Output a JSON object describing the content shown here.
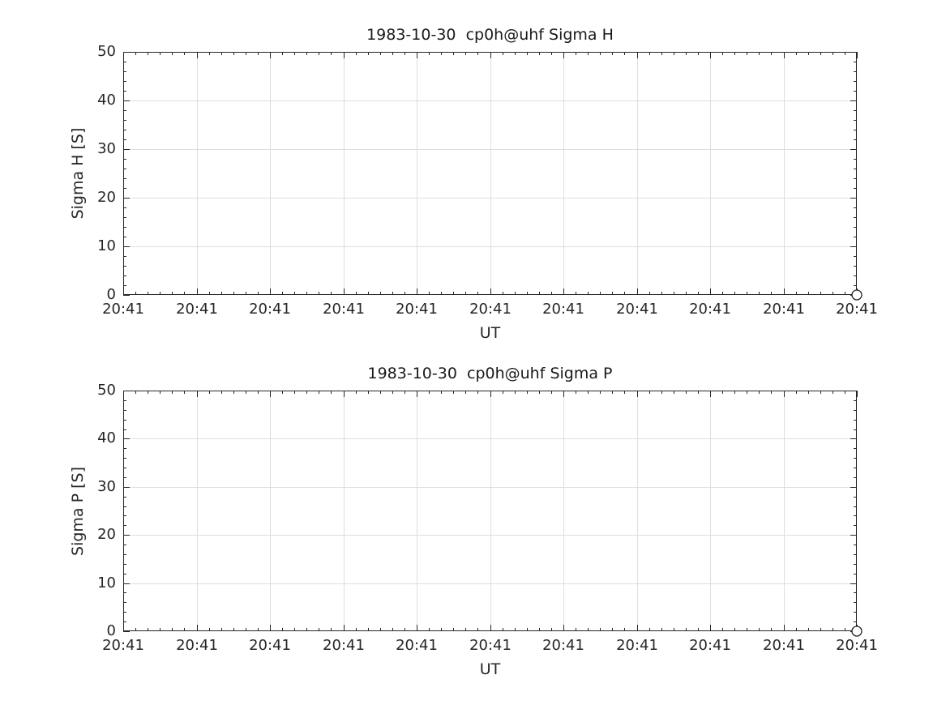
{
  "figure": {
    "background": "#ffffff"
  },
  "style": {
    "axis_color": "#262626",
    "grid_color": "#dedede",
    "text_color": "#262626",
    "marker_edge_color": "#262626",
    "marker_face_color": "#ffffff"
  },
  "chart_data": [
    {
      "type": "scatter",
      "title": "1983-10-30  cp0h@uhf Sigma H",
      "xlabel": "UT",
      "ylabel": "Sigma H [S]",
      "ylim": [
        0,
        50
      ],
      "yticks": [
        0,
        10,
        20,
        30,
        40,
        50
      ],
      "ytick_labels": [
        "0",
        "10",
        "20",
        "30",
        "40",
        "50"
      ],
      "xtick_labels": [
        "20:41",
        "20:41",
        "20:41",
        "20:41",
        "20:41",
        "20:41",
        "20:41",
        "20:41",
        "20:41",
        "20:41",
        "20:41"
      ],
      "grid": true,
      "legend": false,
      "series": [
        {
          "name": "Sigma H",
          "marker": "open-circle",
          "points": [
            {
              "x": "20:41",
              "x_tick_index": 10,
              "y": 0
            }
          ]
        }
      ]
    },
    {
      "type": "scatter",
      "title": "1983-10-30  cp0h@uhf Sigma P",
      "xlabel": "UT",
      "ylabel": "Sigma P [S]",
      "ylim": [
        0,
        50
      ],
      "yticks": [
        0,
        10,
        20,
        30,
        40,
        50
      ],
      "ytick_labels": [
        "0",
        "10",
        "20",
        "30",
        "40",
        "50"
      ],
      "xtick_labels": [
        "20:41",
        "20:41",
        "20:41",
        "20:41",
        "20:41",
        "20:41",
        "20:41",
        "20:41",
        "20:41",
        "20:41",
        "20:41"
      ],
      "grid": true,
      "legend": false,
      "series": [
        {
          "name": "Sigma P",
          "marker": "open-circle",
          "points": [
            {
              "x": "20:41",
              "x_tick_index": 10,
              "y": 0
            }
          ]
        }
      ]
    }
  ]
}
